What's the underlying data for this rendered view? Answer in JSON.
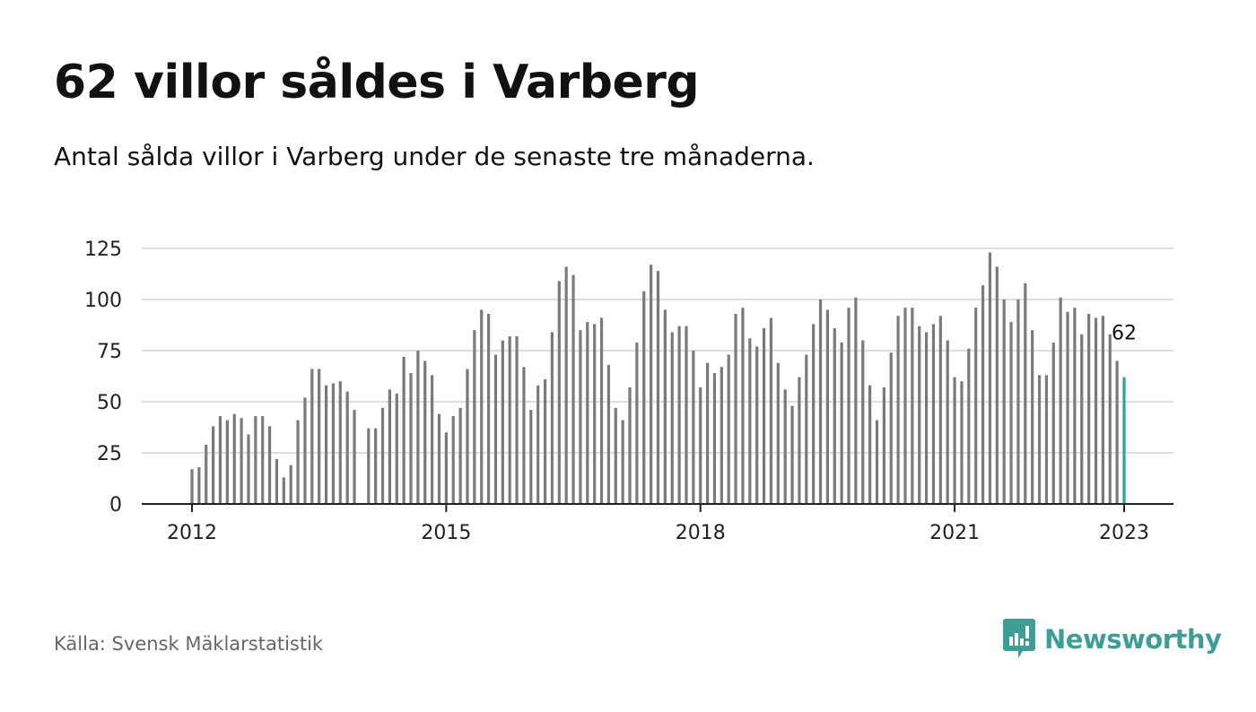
{
  "title": "62 villor såldes i Varberg",
  "subtitle": "Antal sålda villor i Varberg under de senaste tre månaderna.",
  "source": "Källa: Svensk Mäklarstatistik",
  "brand": {
    "name": "Newsworthy",
    "icon": "newsworthy-logo-icon",
    "color": "#3e9e96"
  },
  "colors": {
    "bar": "#7a7a7e",
    "highlight": "#1fa99c",
    "grid": "#dddddd",
    "axis": "#222222"
  },
  "chart_data": {
    "type": "bar",
    "x_start": "2012-01",
    "x_end": "2023-01",
    "xticks": [
      "2012",
      "2015",
      "2018",
      "2021",
      "2023"
    ],
    "yticks": [
      0,
      25,
      50,
      75,
      100,
      125
    ],
    "ylim": [
      0,
      125
    ],
    "grid": true,
    "highlight_label": "62",
    "values": [
      17,
      18,
      29,
      38,
      43,
      41,
      44,
      42,
      34,
      43,
      43,
      38,
      22,
      13,
      19,
      41,
      52,
      66,
      66,
      58,
      59,
      60,
      55,
      46,
      null,
      37,
      37,
      47,
      56,
      54,
      72,
      64,
      75,
      70,
      63,
      44,
      35,
      43,
      47,
      66,
      85,
      95,
      93,
      73,
      80,
      82,
      82,
      67,
      46,
      58,
      61,
      84,
      109,
      116,
      112,
      85,
      89,
      88,
      91,
      68,
      47,
      41,
      57,
      79,
      104,
      117,
      114,
      95,
      84,
      87,
      87,
      75,
      57,
      69,
      64,
      67,
      73,
      93,
      96,
      81,
      77,
      86,
      91,
      69,
      56,
      48,
      62,
      73,
      88,
      100,
      95,
      86,
      79,
      96,
      101,
      80,
      58,
      41,
      57,
      74,
      92,
      96,
      96,
      87,
      84,
      88,
      92,
      80,
      62,
      60,
      76,
      96,
      107,
      123,
      116,
      100,
      89,
      100,
      108,
      85,
      63,
      63,
      79,
      101,
      94,
      96,
      83,
      93,
      91,
      92,
      83,
      70,
      62
    ]
  }
}
